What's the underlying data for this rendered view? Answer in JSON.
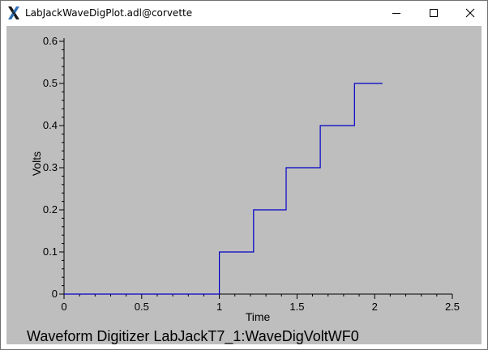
{
  "window": {
    "title": "LabJackWaveDigPlot.adl@corvette",
    "icon": "x-window-icon",
    "controls": [
      "minimize-icon",
      "maximize-icon",
      "close-icon"
    ]
  },
  "colors": {
    "panel_bg": "#bebebe",
    "trace": "#0000c8",
    "axis": "#000000"
  },
  "chart_data": {
    "type": "line",
    "title": "Waveform Digitizer LabJackT7_1:WaveDigVoltWF0",
    "xlabel": "Time",
    "ylabel": "Volts",
    "xlim": [
      0,
      2.5
    ],
    "ylim": [
      0,
      0.6
    ],
    "xticks": [
      "0",
      "0.5",
      "1",
      "1.5",
      "2",
      "2.5"
    ],
    "yticks": [
      "0",
      "0.1",
      "0.2",
      "0.3",
      "0.4",
      "0.5",
      "0.6"
    ],
    "grid": false,
    "series": [
      {
        "x": [
          0,
          1.0,
          1.0,
          1.22,
          1.22,
          1.43,
          1.43,
          1.65,
          1.65,
          1.87,
          1.87,
          2.05
        ],
        "y": [
          0,
          0,
          0.1,
          0.1,
          0.2,
          0.2,
          0.3,
          0.3,
          0.4,
          0.4,
          0.5,
          0.5
        ]
      }
    ]
  }
}
